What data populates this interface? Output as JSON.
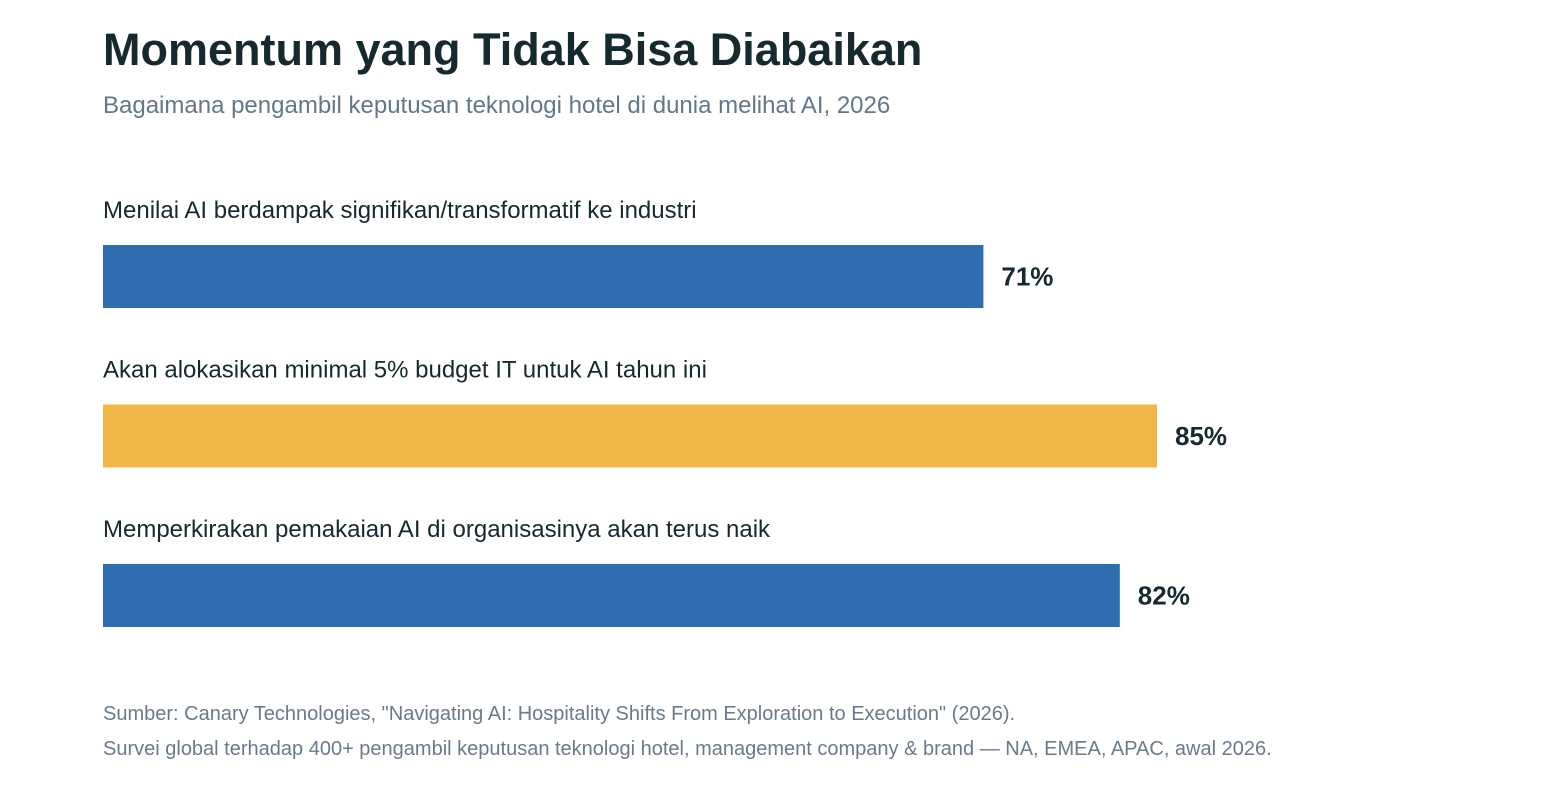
{
  "header": {
    "title": "Momentum yang Tidak Bisa Diabaikan",
    "subtitle": "Bagaimana pengambil keputusan teknologi hotel di dunia melihat AI, 2026"
  },
  "chart_data": {
    "type": "bar",
    "orientation": "horizontal",
    "title": "Momentum yang Tidak Bisa Diabaikan",
    "subtitle": "Bagaimana pengambil keputusan teknologi hotel di dunia melihat AI, 2026",
    "unit": "%",
    "xlim": [
      0,
      100
    ],
    "grid": false,
    "categories": [
      "Menilai AI berdampak signifikan/transformatif ke industri",
      "Akan alokasikan minimal 5% budget IT untuk AI tahun ini",
      "Memperkirakan pemakaian AI di organisasinya akan terus naik"
    ],
    "values": [
      71,
      85,
      82
    ],
    "data_labels": [
      "71%",
      "85%",
      "82%"
    ],
    "colors": [
      "#2e6db0",
      "#f1b645",
      "#2e6db0"
    ]
  },
  "footer": {
    "source_line1": "Sumber: Canary Technologies, \"Navigating AI: Hospitality Shifts From Exploration to Execution\" (2026).",
    "source_line2": "Survei global terhadap 400+ pengambil keputusan teknologi hotel, management company & brand — NA, EMEA, APAC, awal 2026."
  }
}
